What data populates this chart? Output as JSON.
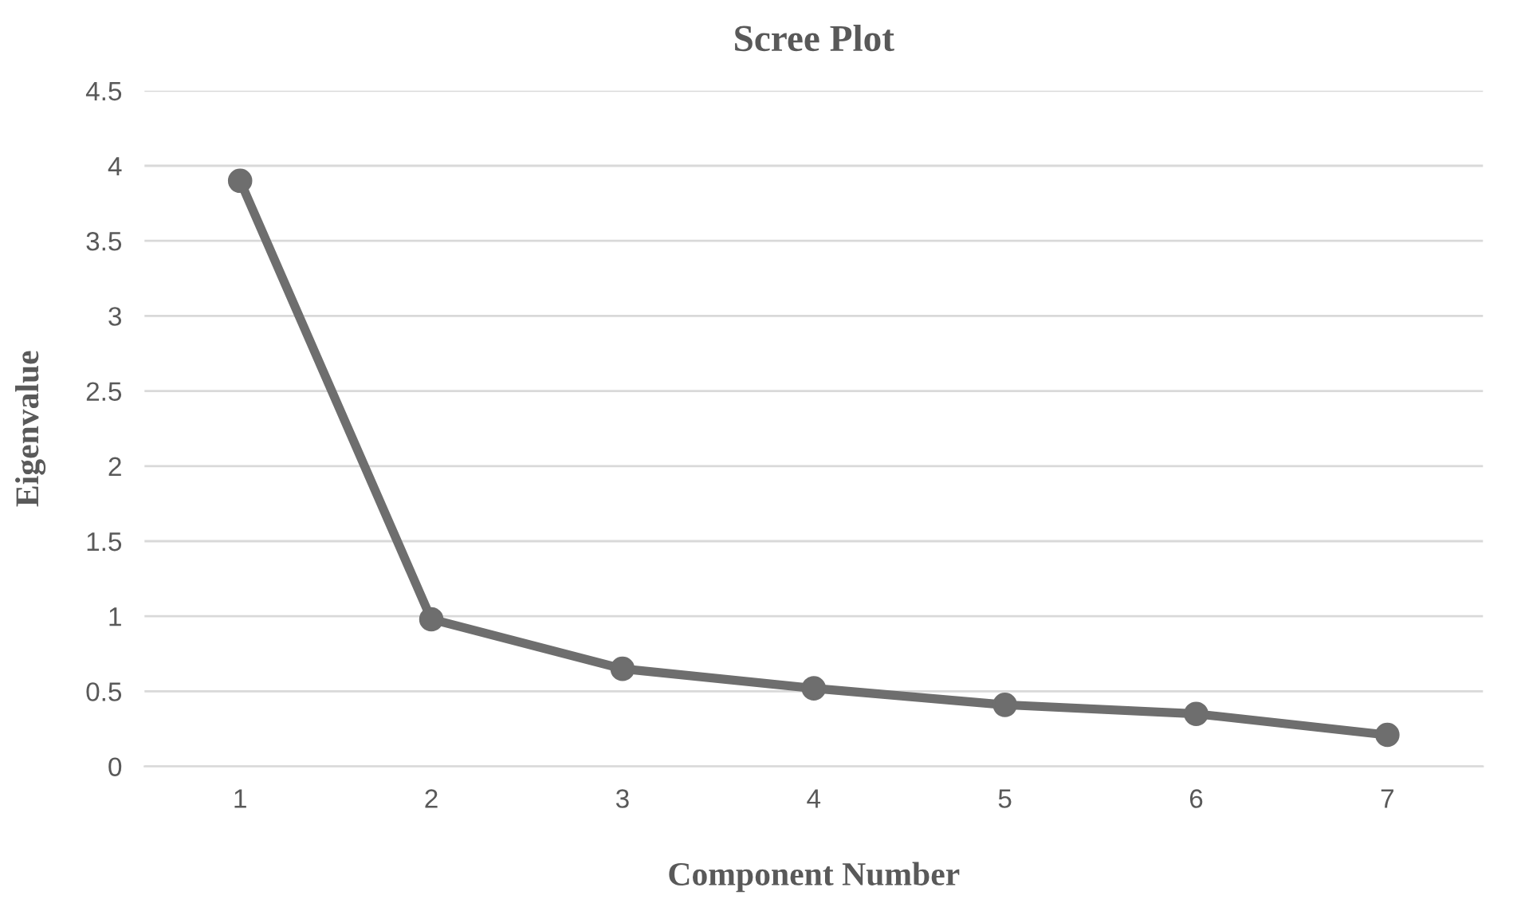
{
  "chart_data": {
    "type": "line",
    "title": "Scree Plot",
    "xlabel": "Component Number",
    "ylabel": "Eigenvalue",
    "categories": [
      "1",
      "2",
      "3",
      "4",
      "5",
      "6",
      "7"
    ],
    "series": [
      {
        "color": "#6e6e6e",
        "values": [
          3.9,
          0.98,
          0.65,
          0.52,
          0.41,
          0.35,
          0.21
        ]
      }
    ],
    "ylim": [
      0,
      4.5
    ],
    "yticks": [
      0,
      0.5,
      1,
      1.5,
      2,
      2.5,
      3,
      3.5,
      4,
      4.5
    ],
    "grid": "y",
    "marker": "circle",
    "line_style": "solid"
  }
}
